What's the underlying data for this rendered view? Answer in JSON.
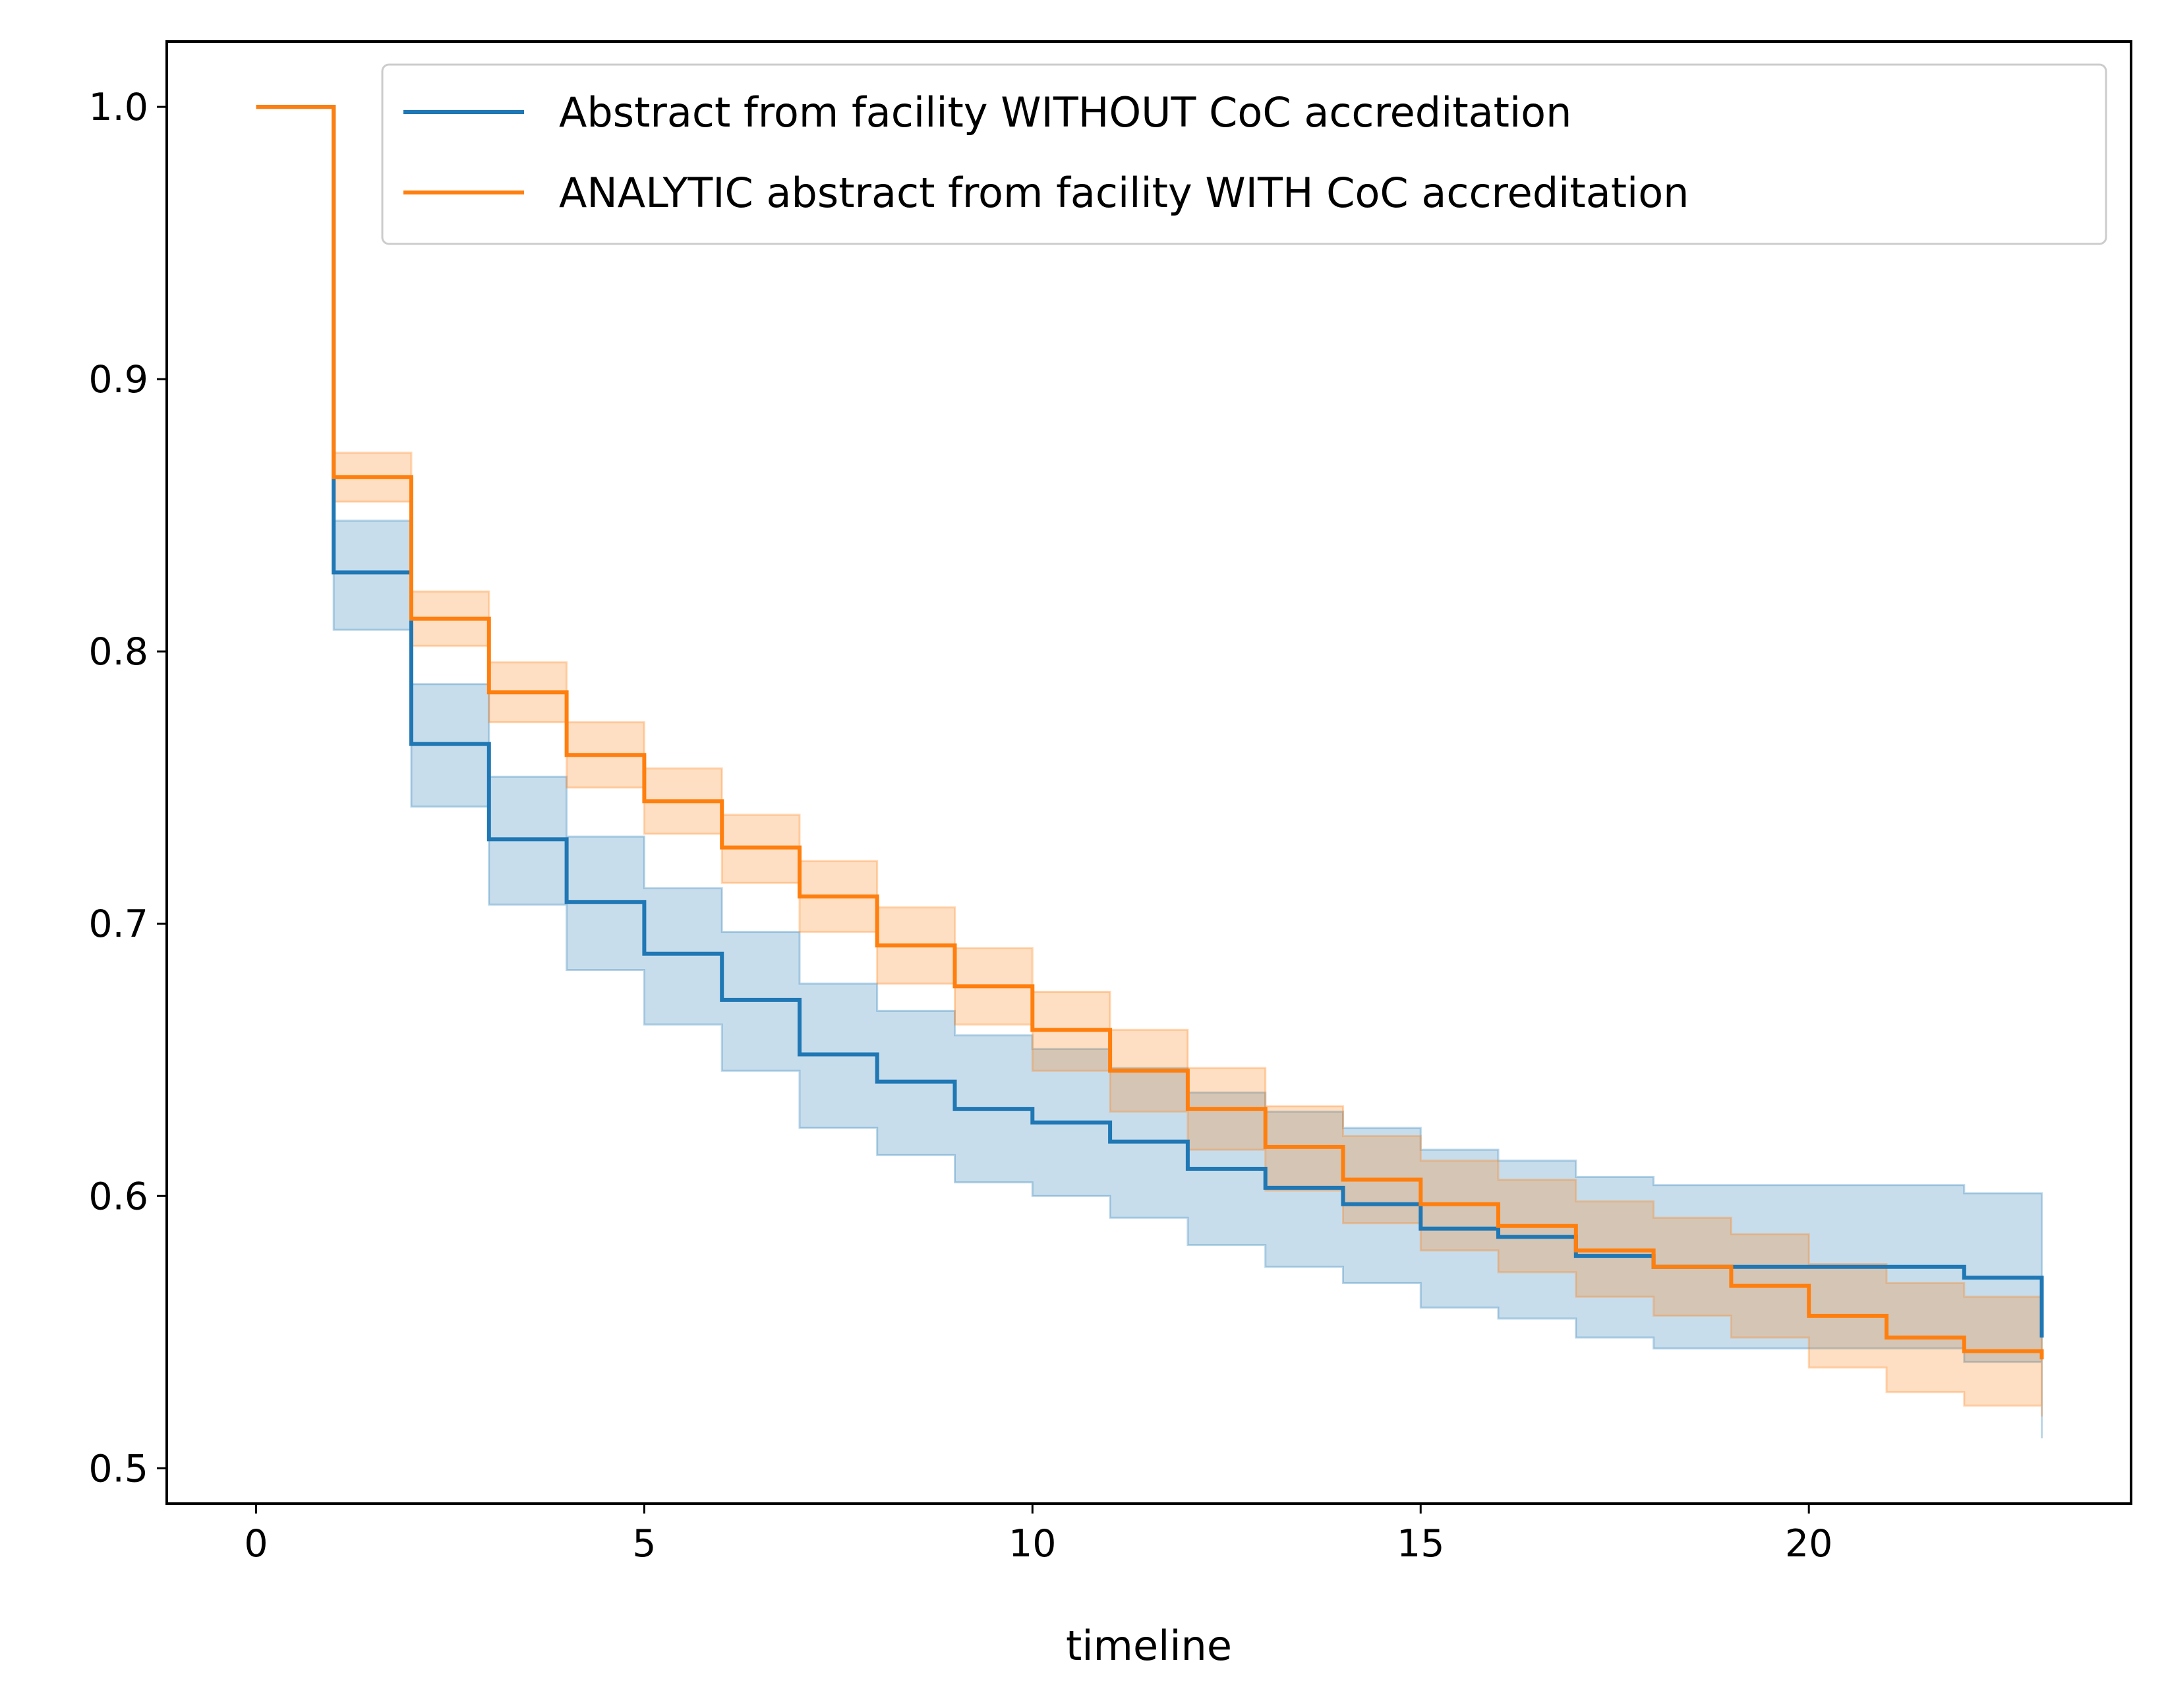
{
  "chart_data": {
    "type": "line",
    "step": "post",
    "title": "",
    "xlabel": "timeline",
    "ylabel": "",
    "xlim": [
      -1.15,
      24.15
    ],
    "ylim": [
      0.487,
      1.024
    ],
    "xticks": [
      0,
      5,
      10,
      15,
      20
    ],
    "yticks": [
      0.5,
      0.6,
      0.7,
      0.8,
      0.9,
      1.0
    ],
    "ytick_labels": [
      "0.5",
      "0.6",
      "0.7",
      "0.8",
      "0.9",
      "1.0"
    ],
    "grid": false,
    "legend_position": "top-right",
    "series": [
      {
        "name": "Abstract from facility WITHOUT CoC accreditation",
        "color": "#1f77b4",
        "x": [
          0,
          1,
          2,
          3,
          4,
          5,
          6,
          7,
          8,
          9,
          10,
          11,
          12,
          13,
          14,
          15,
          16,
          17,
          18,
          19,
          20,
          21,
          22,
          23
        ],
        "y": [
          1.0,
          0.829,
          0.766,
          0.731,
          0.708,
          0.689,
          0.672,
          0.652,
          0.642,
          0.632,
          0.627,
          0.62,
          0.61,
          0.603,
          0.597,
          0.588,
          0.585,
          0.578,
          0.574,
          0.574,
          0.574,
          0.574,
          0.57,
          0.548
        ],
        "lower": [
          1.0,
          0.808,
          0.743,
          0.707,
          0.683,
          0.663,
          0.646,
          0.625,
          0.615,
          0.605,
          0.6,
          0.592,
          0.582,
          0.574,
          0.568,
          0.559,
          0.555,
          0.548,
          0.544,
          0.544,
          0.544,
          0.544,
          0.539,
          0.511
        ],
        "upper": [
          1.0,
          0.848,
          0.788,
          0.754,
          0.732,
          0.713,
          0.697,
          0.678,
          0.668,
          0.659,
          0.654,
          0.647,
          0.638,
          0.631,
          0.625,
          0.617,
          0.613,
          0.607,
          0.604,
          0.604,
          0.604,
          0.604,
          0.601,
          0.601
        ]
      },
      {
        "name": "ANALYTIC abstract from facility WITH CoC accreditation",
        "color": "#ff7f0e",
        "x": [
          0,
          1,
          2,
          3,
          4,
          5,
          6,
          7,
          8,
          9,
          10,
          11,
          12,
          13,
          14,
          15,
          16,
          17,
          18,
          19,
          20,
          21,
          22,
          23
        ],
        "y": [
          1.0,
          0.864,
          0.812,
          0.785,
          0.762,
          0.745,
          0.728,
          0.71,
          0.692,
          0.677,
          0.661,
          0.646,
          0.632,
          0.618,
          0.606,
          0.597,
          0.589,
          0.58,
          0.574,
          0.567,
          0.556,
          0.548,
          0.543,
          0.54
        ],
        "lower": [
          1.0,
          0.855,
          0.802,
          0.774,
          0.75,
          0.733,
          0.715,
          0.697,
          0.678,
          0.663,
          0.646,
          0.631,
          0.617,
          0.602,
          0.59,
          0.58,
          0.572,
          0.563,
          0.556,
          0.548,
          0.537,
          0.528,
          0.523,
          0.519
        ],
        "upper": [
          1.0,
          0.873,
          0.822,
          0.796,
          0.774,
          0.757,
          0.74,
          0.723,
          0.706,
          0.691,
          0.675,
          0.661,
          0.647,
          0.633,
          0.622,
          0.613,
          0.606,
          0.598,
          0.592,
          0.586,
          0.575,
          0.568,
          0.563,
          0.563
        ]
      }
    ]
  }
}
